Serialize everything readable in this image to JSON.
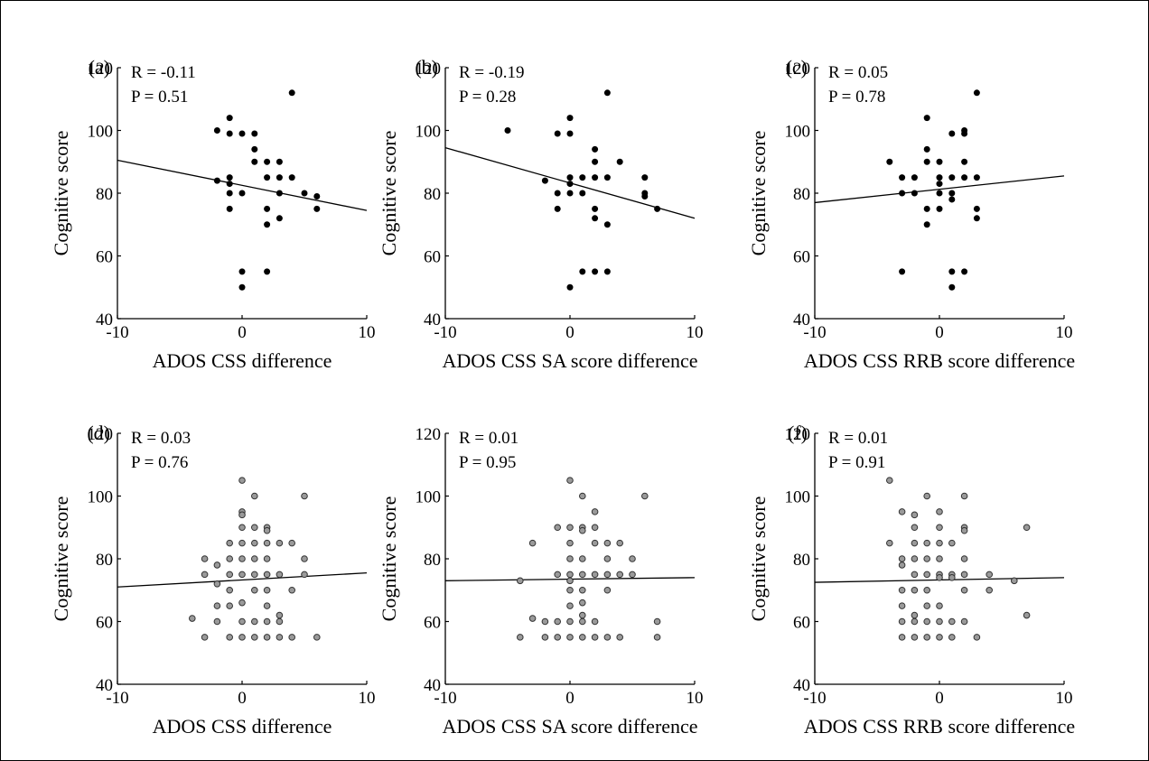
{
  "colors": {
    "filled_marker": "#000000",
    "open_marker_fill": "#9a9a9a",
    "open_marker_stroke": "#333333",
    "fit_line": "#000000"
  },
  "chart_data": [
    {
      "type": "scatter",
      "panel": "(a)",
      "marker": "filled",
      "xlabel": "ADOS CSS difference",
      "ylabel": "Cognitive score",
      "xlim": [
        -10,
        10
      ],
      "ylim": [
        40,
        120
      ],
      "xticks": [
        -10,
        0,
        10
      ],
      "yticks": [
        40,
        60,
        80,
        100,
        120
      ],
      "R": "R = -0.11",
      "P": "P = 0.51",
      "fit": [
        [
          -10,
          90.5
        ],
        [
          10,
          74.5
        ]
      ],
      "points": [
        [
          -2,
          100
        ],
        [
          -2,
          84
        ],
        [
          -1,
          104
        ],
        [
          -1,
          99
        ],
        [
          -1,
          85
        ],
        [
          -1,
          83
        ],
        [
          -1,
          80
        ],
        [
          -1,
          75
        ],
        [
          0,
          99
        ],
        [
          0,
          80
        ],
        [
          0,
          55
        ],
        [
          0,
          50
        ],
        [
          1,
          99
        ],
        [
          1,
          94
        ],
        [
          1,
          90
        ],
        [
          2,
          90
        ],
        [
          2,
          85
        ],
        [
          2,
          75
        ],
        [
          2,
          70
        ],
        [
          2,
          55
        ],
        [
          3,
          90
        ],
        [
          3,
          85
        ],
        [
          3,
          80
        ],
        [
          3,
          72
        ],
        [
          4,
          112
        ],
        [
          4,
          85
        ],
        [
          5,
          80
        ],
        [
          6,
          79
        ],
        [
          6,
          75
        ]
      ]
    },
    {
      "type": "scatter",
      "panel": "(b)",
      "marker": "filled",
      "xlabel": "ADOS CSS SA score difference",
      "ylabel": "Cognitive score",
      "xlim": [
        -10,
        10
      ],
      "ylim": [
        40,
        120
      ],
      "xticks": [
        -10,
        0,
        10
      ],
      "yticks": [
        40,
        60,
        80,
        100,
        120
      ],
      "R": "R = -0.19",
      "P": "P = 0.28",
      "fit": [
        [
          -10,
          94.5
        ],
        [
          10,
          72
        ]
      ],
      "points": [
        [
          -5,
          100
        ],
        [
          -2,
          84
        ],
        [
          -1,
          99
        ],
        [
          -1,
          80
        ],
        [
          -1,
          75
        ],
        [
          0,
          104
        ],
        [
          0,
          99
        ],
        [
          0,
          85
        ],
        [
          0,
          83
        ],
        [
          0,
          80
        ],
        [
          0,
          50
        ],
        [
          1,
          85
        ],
        [
          1,
          80
        ],
        [
          1,
          55
        ],
        [
          2,
          94
        ],
        [
          2,
          90
        ],
        [
          2,
          85
        ],
        [
          2,
          75
        ],
        [
          2,
          72
        ],
        [
          2,
          55
        ],
        [
          3,
          112
        ],
        [
          3,
          85
        ],
        [
          3,
          70
        ],
        [
          3,
          55
        ],
        [
          4,
          90
        ],
        [
          6,
          85
        ],
        [
          6,
          80
        ],
        [
          6,
          79
        ],
        [
          7,
          75
        ]
      ]
    },
    {
      "type": "scatter",
      "panel": "(c)",
      "marker": "filled",
      "xlabel": "ADOS CSS RRB score difference",
      "ylabel": "Cognitive score",
      "xlim": [
        -10,
        10
      ],
      "ylim": [
        40,
        120
      ],
      "xticks": [
        -10,
        0,
        10
      ],
      "yticks": [
        40,
        60,
        80,
        100,
        120
      ],
      "R": "R = 0.05",
      "P": "P = 0.78",
      "fit": [
        [
          -10,
          77
        ],
        [
          10,
          85.5
        ]
      ],
      "points": [
        [
          -4,
          90
        ],
        [
          -3,
          85
        ],
        [
          -3,
          80
        ],
        [
          -3,
          55
        ],
        [
          -2,
          85
        ],
        [
          -2,
          80
        ],
        [
          -1,
          104
        ],
        [
          -1,
          94
        ],
        [
          -1,
          90
        ],
        [
          -1,
          75
        ],
        [
          -1,
          70
        ],
        [
          0,
          90
        ],
        [
          0,
          85
        ],
        [
          0,
          83
        ],
        [
          0,
          80
        ],
        [
          0,
          75
        ],
        [
          1,
          99
        ],
        [
          1,
          85
        ],
        [
          1,
          80
        ],
        [
          1,
          78
        ],
        [
          1,
          55
        ],
        [
          1,
          50
        ],
        [
          2,
          100
        ],
        [
          2,
          99
        ],
        [
          2,
          90
        ],
        [
          2,
          85
        ],
        [
          2,
          55
        ],
        [
          3,
          112
        ],
        [
          3,
          85
        ],
        [
          3,
          75
        ],
        [
          3,
          72
        ]
      ]
    },
    {
      "type": "scatter",
      "panel": "(d)",
      "marker": "open",
      "xlabel": "ADOS CSS difference",
      "ylabel": "Cognitive score",
      "xlim": [
        -10,
        10
      ],
      "ylim": [
        40,
        120
      ],
      "xticks": [
        -10,
        0,
        10
      ],
      "yticks": [
        40,
        60,
        80,
        100,
        120
      ],
      "R": "R = 0.03",
      "P": "P = 0.76",
      "fit": [
        [
          -10,
          71
        ],
        [
          10,
          75.5
        ]
      ],
      "points": [
        [
          -4,
          61
        ],
        [
          -3,
          80
        ],
        [
          -3,
          75
        ],
        [
          -3,
          55
        ],
        [
          -2,
          78
        ],
        [
          -2,
          72
        ],
        [
          -2,
          65
        ],
        [
          -2,
          60
        ],
        [
          -1,
          85
        ],
        [
          -1,
          80
        ],
        [
          -1,
          75
        ],
        [
          -1,
          70
        ],
        [
          -1,
          65
        ],
        [
          -1,
          55
        ],
        [
          0,
          105
        ],
        [
          0,
          95
        ],
        [
          0,
          94
        ],
        [
          0,
          90
        ],
        [
          0,
          85
        ],
        [
          0,
          80
        ],
        [
          0,
          75
        ],
        [
          0,
          66
        ],
        [
          0,
          60
        ],
        [
          0,
          55
        ],
        [
          1,
          100
        ],
        [
          1,
          90
        ],
        [
          1,
          85
        ],
        [
          1,
          80
        ],
        [
          1,
          75
        ],
        [
          1,
          70
        ],
        [
          1,
          60
        ],
        [
          1,
          55
        ],
        [
          2,
          90
        ],
        [
          2,
          89
        ],
        [
          2,
          85
        ],
        [
          2,
          80
        ],
        [
          2,
          75
        ],
        [
          2,
          70
        ],
        [
          2,
          65
        ],
        [
          2,
          60
        ],
        [
          2,
          55
        ],
        [
          3,
          85
        ],
        [
          3,
          75
        ],
        [
          3,
          62
        ],
        [
          3,
          60
        ],
        [
          3,
          55
        ],
        [
          4,
          85
        ],
        [
          4,
          70
        ],
        [
          4,
          55
        ],
        [
          5,
          100
        ],
        [
          5,
          80
        ],
        [
          5,
          75
        ],
        [
          6,
          55
        ]
      ]
    },
    {
      "type": "scatter",
      "panel": "",
      "marker": "open",
      "xlabel": "ADOS CSS SA score difference",
      "ylabel": "Cognitive score",
      "xlim": [
        -10,
        10
      ],
      "ylim": [
        40,
        120
      ],
      "xticks": [
        -10,
        0,
        10
      ],
      "yticks": [
        40,
        60,
        80,
        100,
        120
      ],
      "R": "R = 0.01",
      "P": "P = 0.95",
      "fit": [
        [
          -10,
          73
        ],
        [
          10,
          74
        ]
      ],
      "points": [
        [
          -4,
          73
        ],
        [
          -4,
          55
        ],
        [
          -3,
          85
        ],
        [
          -3,
          61
        ],
        [
          -2,
          60
        ],
        [
          -2,
          55
        ],
        [
          -1,
          90
        ],
        [
          -1,
          75
        ],
        [
          -1,
          60
        ],
        [
          -1,
          55
        ],
        [
          0,
          105
        ],
        [
          0,
          90
        ],
        [
          0,
          85
        ],
        [
          0,
          80
        ],
        [
          0,
          75
        ],
        [
          0,
          73
        ],
        [
          0,
          70
        ],
        [
          0,
          65
        ],
        [
          0,
          60
        ],
        [
          0,
          55
        ],
        [
          1,
          100
        ],
        [
          1,
          90
        ],
        [
          1,
          89
        ],
        [
          1,
          80
        ],
        [
          1,
          75
        ],
        [
          1,
          70
        ],
        [
          1,
          66
        ],
        [
          1,
          62
        ],
        [
          1,
          60
        ],
        [
          1,
          55
        ],
        [
          2,
          95
        ],
        [
          2,
          90
        ],
        [
          2,
          85
        ],
        [
          2,
          75
        ],
        [
          2,
          60
        ],
        [
          2,
          55
        ],
        [
          3,
          85
        ],
        [
          3,
          80
        ],
        [
          3,
          75
        ],
        [
          3,
          70
        ],
        [
          3,
          55
        ],
        [
          4,
          85
        ],
        [
          4,
          75
        ],
        [
          4,
          55
        ],
        [
          5,
          80
        ],
        [
          5,
          75
        ],
        [
          6,
          100
        ],
        [
          7,
          60
        ],
        [
          7,
          55
        ]
      ]
    },
    {
      "type": "scatter",
      "panel": "(f)",
      "marker": "open",
      "xlabel": "ADOS CSS RRB score difference",
      "ylabel": "Cognitive score",
      "xlim": [
        -10,
        10
      ],
      "ylim": [
        40,
        120
      ],
      "xticks": [
        -10,
        0,
        10
      ],
      "yticks": [
        40,
        60,
        80,
        100,
        120
      ],
      "R": "R = 0.01",
      "P": "P = 0.91",
      "fit": [
        [
          -10,
          72.5
        ],
        [
          10,
          74
        ]
      ],
      "points": [
        [
          -4,
          105
        ],
        [
          -4,
          85
        ],
        [
          -3,
          95
        ],
        [
          -3,
          80
        ],
        [
          -3,
          78
        ],
        [
          -3,
          70
        ],
        [
          -3,
          65
        ],
        [
          -3,
          60
        ],
        [
          -3,
          55
        ],
        [
          -2,
          94
        ],
        [
          -2,
          90
        ],
        [
          -2,
          85
        ],
        [
          -2,
          80
        ],
        [
          -2,
          75
        ],
        [
          -2,
          70
        ],
        [
          -2,
          62
        ],
        [
          -2,
          60
        ],
        [
          -2,
          55
        ],
        [
          -1,
          100
        ],
        [
          -1,
          85
        ],
        [
          -1,
          80
        ],
        [
          -1,
          75
        ],
        [
          -1,
          70
        ],
        [
          -1,
          65
        ],
        [
          -1,
          60
        ],
        [
          -1,
          55
        ],
        [
          0,
          95
        ],
        [
          0,
          90
        ],
        [
          0,
          85
        ],
        [
          0,
          80
        ],
        [
          0,
          75
        ],
        [
          0,
          74
        ],
        [
          0,
          65
        ],
        [
          0,
          60
        ],
        [
          0,
          55
        ],
        [
          1,
          85
        ],
        [
          1,
          75
        ],
        [
          1,
          74
        ],
        [
          1,
          60
        ],
        [
          1,
          55
        ],
        [
          2,
          100
        ],
        [
          2,
          90
        ],
        [
          2,
          89
        ],
        [
          2,
          80
        ],
        [
          2,
          75
        ],
        [
          2,
          70
        ],
        [
          2,
          60
        ],
        [
          3,
          55
        ],
        [
          4,
          75
        ],
        [
          4,
          70
        ],
        [
          6,
          73
        ],
        [
          7,
          90
        ],
        [
          7,
          62
        ]
      ]
    }
  ]
}
